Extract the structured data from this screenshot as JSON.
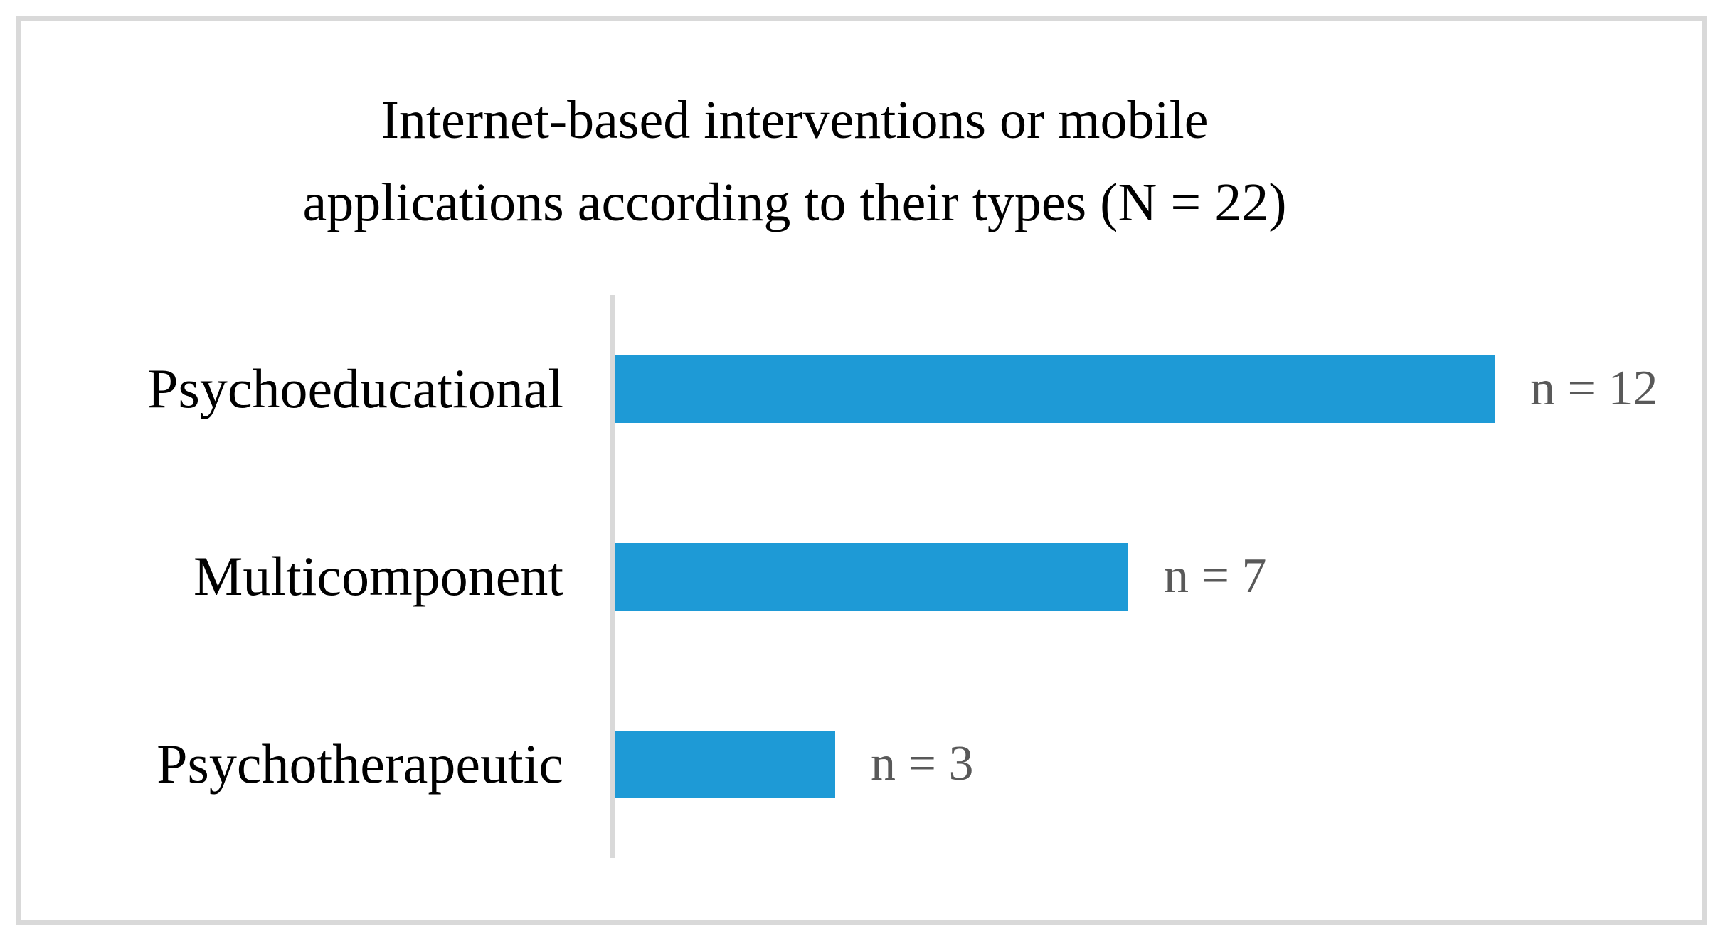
{
  "figure": {
    "title_line1": "Internet-based interventions or mobile",
    "title_line2": "applications according to their types (N = 22)"
  },
  "chart_data": {
    "type": "bar",
    "orientation": "horizontal",
    "title": "Internet-based interventions or mobile applications according to their types (N = 22)",
    "sample_size_label": "N = 22",
    "categories": [
      "Psychoeducational",
      "Multicomponent",
      "Psychotherapeutic"
    ],
    "values": [
      12,
      7,
      3
    ],
    "value_labels": [
      "n = 12",
      "n = 7",
      "n = 3"
    ],
    "xlim": [
      0,
      12
    ],
    "grid": false,
    "legend": false,
    "colors": {
      "bar": "#1e9ad6",
      "axis_line": "#d9d9d9",
      "frame_border": "#d9d9d9",
      "value_label_text": "#595959",
      "category_label_text": "#000000",
      "title_text": "#000000",
      "background": "#ffffff"
    }
  }
}
